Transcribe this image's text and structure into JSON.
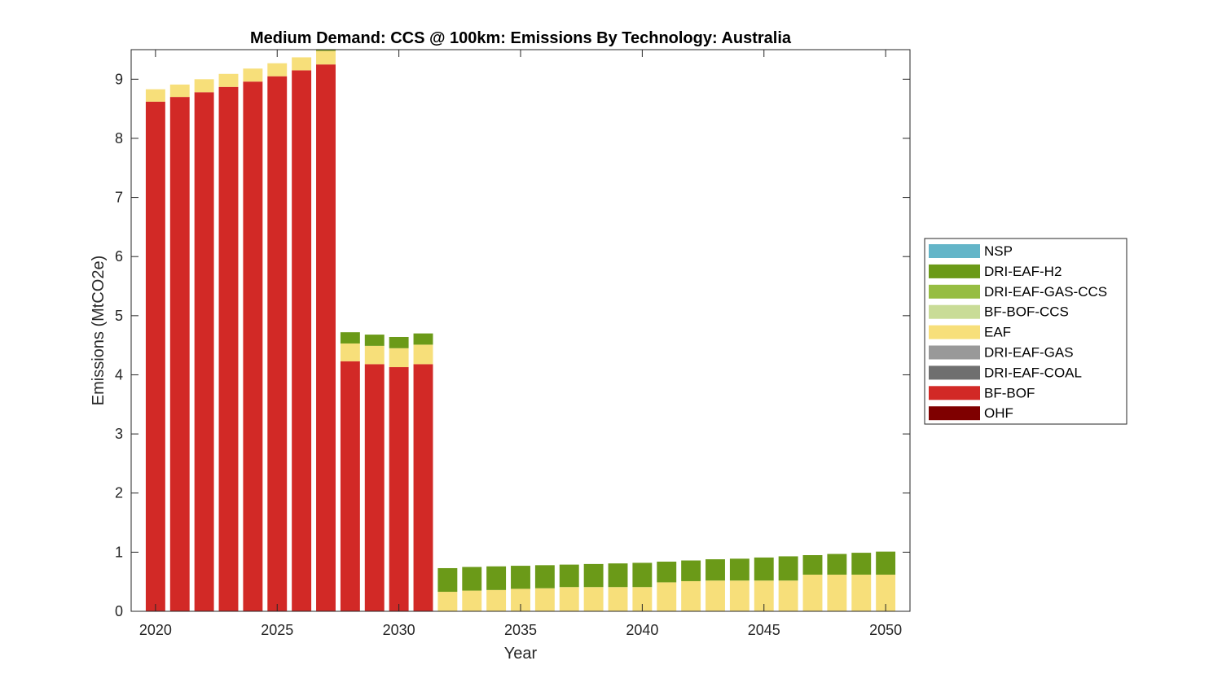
{
  "chart_data": {
    "type": "bar",
    "stacked": true,
    "title": "Medium Demand: CCS @ 100km: Emissions By Technology: Australia",
    "xlabel": "Year",
    "ylabel": "Emissions (MtCO2e)",
    "xlim": [
      2019,
      2051
    ],
    "ylim": [
      0,
      9.5
    ],
    "xticks": [
      2020,
      2025,
      2030,
      2035,
      2040,
      2045,
      2050
    ],
    "yticks": [
      0,
      1,
      2,
      3,
      4,
      5,
      6,
      7,
      8,
      9
    ],
    "legend_position": "right",
    "categories": [
      2020,
      2021,
      2022,
      2023,
      2024,
      2025,
      2026,
      2027,
      2028,
      2029,
      2030,
      2031,
      2032,
      2033,
      2034,
      2035,
      2036,
      2037,
      2038,
      2039,
      2040,
      2041,
      2042,
      2043,
      2044,
      2045,
      2046,
      2047,
      2048,
      2049,
      2050
    ],
    "series": [
      {
        "name": "OHF",
        "color": "#7f0000",
        "values": [
          0,
          0,
          0,
          0,
          0,
          0,
          0,
          0,
          0,
          0,
          0,
          0,
          0,
          0,
          0,
          0,
          0,
          0,
          0,
          0,
          0,
          0,
          0,
          0,
          0,
          0,
          0,
          0,
          0,
          0,
          0
        ]
      },
      {
        "name": "BF-BOF",
        "color": "#d22926",
        "values": [
          8.62,
          8.7,
          8.78,
          8.87,
          8.96,
          9.05,
          9.15,
          9.25,
          4.23,
          4.18,
          4.13,
          4.18,
          0,
          0,
          0,
          0,
          0,
          0,
          0,
          0,
          0,
          0,
          0,
          0,
          0,
          0,
          0,
          0,
          0,
          0,
          0
        ]
      },
      {
        "name": "DRI-EAF-COAL",
        "color": "#6f6f6f",
        "values": [
          0,
          0,
          0,
          0,
          0,
          0,
          0,
          0,
          0,
          0,
          0,
          0,
          0,
          0,
          0,
          0,
          0,
          0,
          0,
          0,
          0,
          0,
          0,
          0,
          0,
          0,
          0,
          0,
          0,
          0,
          0
        ]
      },
      {
        "name": "DRI-EAF-GAS",
        "color": "#999999",
        "values": [
          0,
          0,
          0,
          0,
          0,
          0,
          0,
          0,
          0,
          0,
          0,
          0,
          0,
          0,
          0,
          0,
          0,
          0,
          0,
          0,
          0,
          0,
          0,
          0,
          0,
          0,
          0,
          0,
          0,
          0,
          0
        ]
      },
      {
        "name": "EAF",
        "color": "#f7df7a",
        "values": [
          0.21,
          0.21,
          0.22,
          0.22,
          0.22,
          0.22,
          0.22,
          0.23,
          0.3,
          0.31,
          0.32,
          0.33,
          0.33,
          0.35,
          0.36,
          0.38,
          0.39,
          0.41,
          0.41,
          0.41,
          0.41,
          0.49,
          0.51,
          0.52,
          0.52,
          0.52,
          0.52,
          0.62,
          0.62,
          0.62,
          0.62
        ]
      },
      {
        "name": "BF-BOF-CCS",
        "color": "#c9dc97",
        "values": [
          0,
          0,
          0,
          0,
          0,
          0,
          0,
          0,
          0,
          0,
          0,
          0,
          0,
          0,
          0,
          0,
          0,
          0,
          0,
          0,
          0,
          0,
          0,
          0,
          0,
          0,
          0,
          0,
          0,
          0,
          0
        ]
      },
      {
        "name": "DRI-EAF-GAS-CCS",
        "color": "#96bd42",
        "values": [
          0,
          0,
          0,
          0,
          0,
          0,
          0,
          0,
          0,
          0,
          0,
          0,
          0,
          0,
          0,
          0,
          0,
          0,
          0,
          0,
          0,
          0,
          0,
          0,
          0,
          0,
          0,
          0,
          0,
          0,
          0
        ]
      },
      {
        "name": "DRI-EAF-H2",
        "color": "#6b9a18",
        "values": [
          0,
          0,
          0,
          0,
          0,
          0,
          0,
          0.02,
          0.19,
          0.19,
          0.19,
          0.19,
          0.4,
          0.4,
          0.4,
          0.39,
          0.39,
          0.38,
          0.39,
          0.4,
          0.41,
          0.35,
          0.35,
          0.36,
          0.37,
          0.39,
          0.41,
          0.33,
          0.35,
          0.37,
          0.39
        ]
      },
      {
        "name": "NSP",
        "color": "#63b5c8",
        "values": [
          0,
          0,
          0,
          0,
          0,
          0,
          0,
          0,
          0,
          0,
          0,
          0,
          0,
          0,
          0,
          0,
          0,
          0,
          0,
          0,
          0,
          0,
          0,
          0,
          0,
          0,
          0,
          0,
          0,
          0,
          0
        ]
      }
    ],
    "legend_order": [
      "NSP",
      "DRI-EAF-H2",
      "DRI-EAF-GAS-CCS",
      "BF-BOF-CCS",
      "EAF",
      "DRI-EAF-GAS",
      "DRI-EAF-COAL",
      "BF-BOF",
      "OHF"
    ]
  }
}
